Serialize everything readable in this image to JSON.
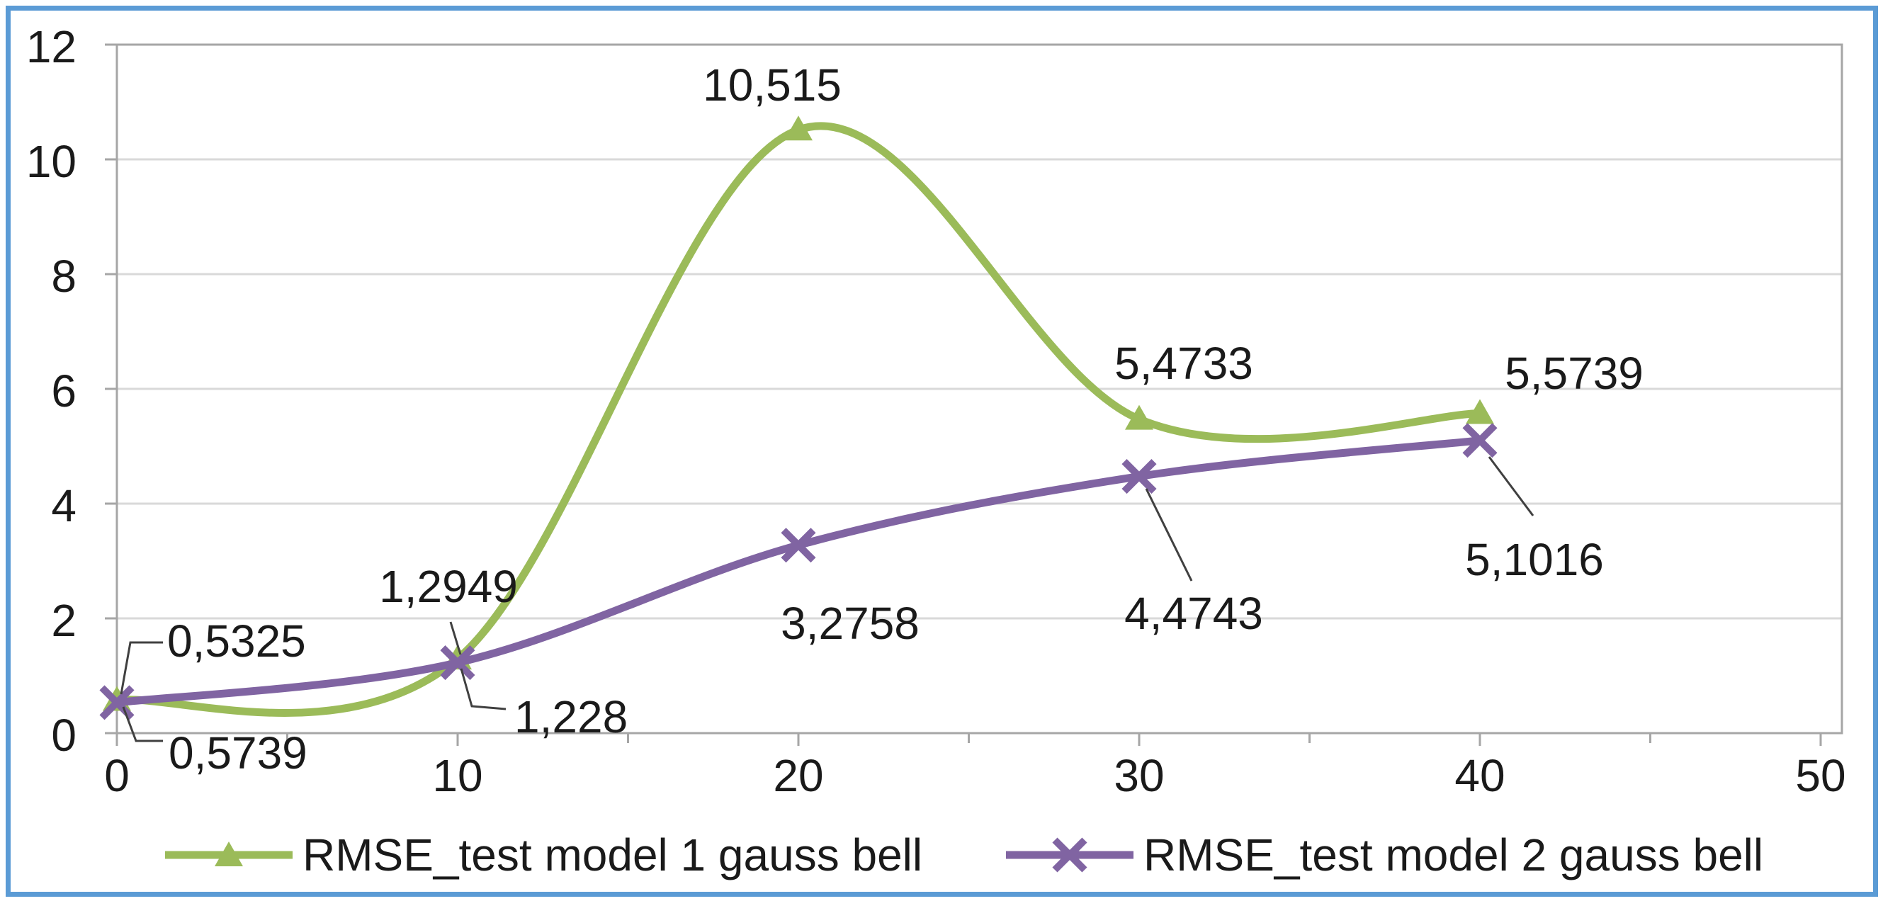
{
  "chart": {
    "frame_border_color": "#5B9BD5",
    "background_color": "#FFFFFF",
    "gridline_color": "#D9D9D9",
    "axis_color": "#A6A6A6",
    "text_color": "#1A1A1A",
    "leader_line_color": "#404040"
  },
  "chart_data": {
    "type": "line",
    "x": [
      0,
      10,
      20,
      30,
      40
    ],
    "xlim": [
      0,
      50
    ],
    "ylim": [
      0,
      12
    ],
    "x_ticks": [
      0,
      10,
      20,
      30,
      40,
      50
    ],
    "y_ticks": [
      0,
      2,
      4,
      6,
      8,
      10,
      12
    ],
    "grid": "horizontal",
    "legend_position": "bottom",
    "smooth_lines": true,
    "series": [
      {
        "name": "RMSE_test model 1 gauss bell",
        "color": "#9BBB59",
        "marker": "triangle",
        "values": [
          0.5739,
          1.2949,
          10.515,
          5.4733,
          5.5739
        ],
        "labels": [
          "0,5739",
          "1,2949",
          "10,515",
          "5,4733",
          "5,5739"
        ]
      },
      {
        "name": "RMSE_test model 2 gauss bell",
        "color": "#8064A2",
        "marker": "x",
        "values": [
          0.5325,
          1.228,
          3.2758,
          4.4743,
          5.1016
        ],
        "labels": [
          "0,5325",
          "1,228",
          "3,2758",
          "4,4743",
          "5,1016"
        ]
      }
    ]
  },
  "legend": {
    "items": [
      {
        "label": "RMSE_test model 1 gauss bell"
      },
      {
        "label": "RMSE_test model 2 gauss bell"
      }
    ]
  }
}
